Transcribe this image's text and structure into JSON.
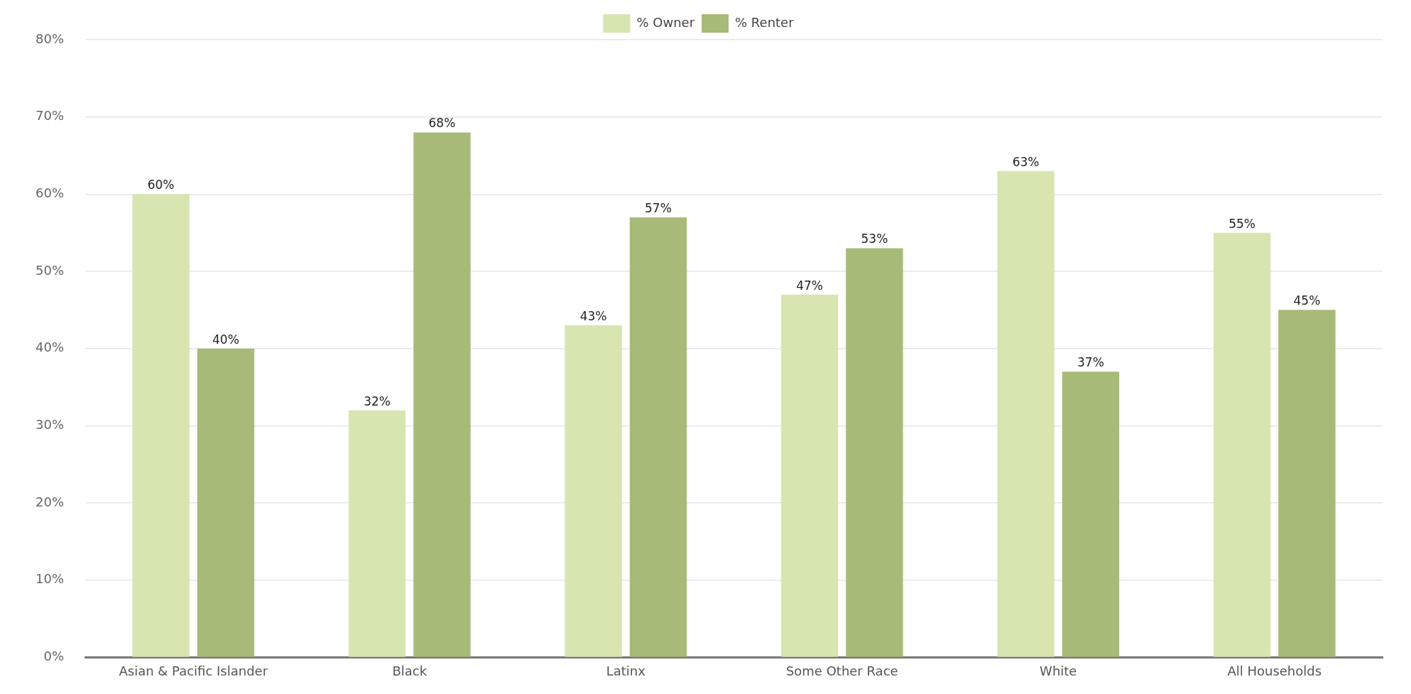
{
  "chart_data": {
    "type": "bar",
    "categories": [
      "Asian & Pacific Islander",
      "Black",
      "Latinx",
      "Some Other Race",
      "White",
      "All Households"
    ],
    "series": [
      {
        "name": "% Owner",
        "color": "#d7e6b1",
        "values": [
          60,
          32,
          43,
          47,
          63,
          55
        ],
        "value_labels": [
          "60%",
          "32%",
          "43%",
          "47%",
          "63%",
          "55%"
        ]
      },
      {
        "name": "% Renter",
        "color": "#a8ba78",
        "values": [
          40,
          68,
          57,
          53,
          37,
          45
        ],
        "value_labels": [
          "40%",
          "68%",
          "57%",
          "53%",
          "37%",
          "45%"
        ]
      }
    ],
    "ylim": [
      0,
      80
    ],
    "yticks": [
      {
        "value": 0,
        "label": "0%"
      },
      {
        "value": 10,
        "label": "10%"
      },
      {
        "value": 20,
        "label": "20%"
      },
      {
        "value": 30,
        "label": "30%"
      },
      {
        "value": 40,
        "label": "40%"
      },
      {
        "value": 50,
        "label": "50%"
      },
      {
        "value": 60,
        "label": "60%"
      },
      {
        "value": 70,
        "label": "70%"
      },
      {
        "value": 80,
        "label": "80%"
      }
    ],
    "grid": "y",
    "legend": "top"
  }
}
